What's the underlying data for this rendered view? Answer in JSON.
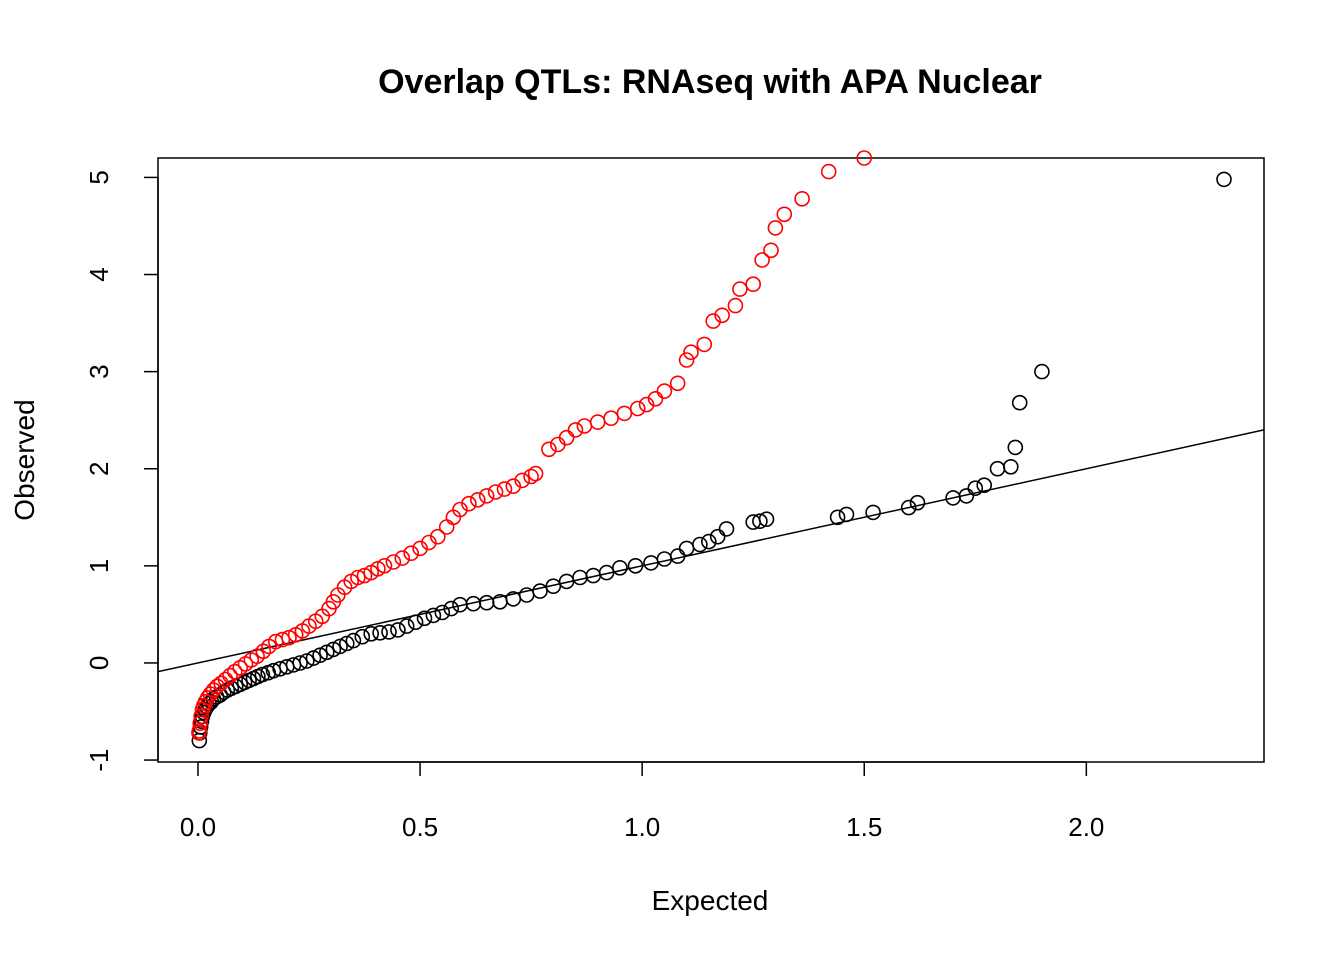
{
  "chart_data": {
    "type": "scatter",
    "title": "Overlap QTLs: RNAseq with APA Nuclear",
    "xlabel": "Expected",
    "ylabel": "Observed",
    "xlim": [
      -0.09,
      2.4
    ],
    "ylim": [
      -1.02,
      5.2
    ],
    "x_ticks": [
      0.0,
      0.5,
      1.0,
      1.5,
      2.0
    ],
    "x_tick_labels": [
      "0.0",
      "0.5",
      "1.0",
      "1.5",
      "2.0"
    ],
    "y_ticks": [
      -1,
      0,
      1,
      2,
      3,
      4,
      5
    ],
    "y_tick_labels": [
      "-1",
      "0",
      "1",
      "2",
      "3",
      "4",
      "5"
    ],
    "grid": false,
    "reference_line": {
      "intercept": 0.0,
      "slope": 1.0
    },
    "series": [
      {
        "color": "#000000",
        "marker": "open-circle",
        "points": [
          [
            0.003,
            -0.8
          ],
          [
            0.004,
            -0.72
          ],
          [
            0.006,
            -0.66
          ],
          [
            0.008,
            -0.6
          ],
          [
            0.01,
            -0.55
          ],
          [
            0.013,
            -0.51
          ],
          [
            0.016,
            -0.48
          ],
          [
            0.02,
            -0.45
          ],
          [
            0.025,
            -0.42
          ],
          [
            0.03,
            -0.4
          ],
          [
            0.035,
            -0.37
          ],
          [
            0.042,
            -0.35
          ],
          [
            0.05,
            -0.33
          ],
          [
            0.058,
            -0.3
          ],
          [
            0.066,
            -0.28
          ],
          [
            0.075,
            -0.26
          ],
          [
            0.085,
            -0.24
          ],
          [
            0.095,
            -0.22
          ],
          [
            0.105,
            -0.2
          ],
          [
            0.115,
            -0.18
          ],
          [
            0.125,
            -0.16
          ],
          [
            0.135,
            -0.14
          ],
          [
            0.145,
            -0.12
          ],
          [
            0.158,
            -0.1
          ],
          [
            0.17,
            -0.08
          ],
          [
            0.185,
            -0.06
          ],
          [
            0.2,
            -0.04
          ],
          [
            0.215,
            -0.02
          ],
          [
            0.23,
            0.0
          ],
          [
            0.245,
            0.02
          ],
          [
            0.26,
            0.05
          ],
          [
            0.275,
            0.08
          ],
          [
            0.29,
            0.11
          ],
          [
            0.305,
            0.14
          ],
          [
            0.32,
            0.17
          ],
          [
            0.335,
            0.2
          ],
          [
            0.35,
            0.23
          ],
          [
            0.37,
            0.27
          ],
          [
            0.39,
            0.3
          ],
          [
            0.41,
            0.31
          ],
          [
            0.43,
            0.32
          ],
          [
            0.45,
            0.34
          ],
          [
            0.47,
            0.38
          ],
          [
            0.49,
            0.42
          ],
          [
            0.51,
            0.46
          ],
          [
            0.53,
            0.49
          ],
          [
            0.55,
            0.52
          ],
          [
            0.57,
            0.56
          ],
          [
            0.59,
            0.6
          ],
          [
            0.62,
            0.61
          ],
          [
            0.65,
            0.62
          ],
          [
            0.68,
            0.63
          ],
          [
            0.71,
            0.66
          ],
          [
            0.74,
            0.7
          ],
          [
            0.77,
            0.74
          ],
          [
            0.8,
            0.79
          ],
          [
            0.83,
            0.84
          ],
          [
            0.86,
            0.88
          ],
          [
            0.89,
            0.9
          ],
          [
            0.92,
            0.93
          ],
          [
            0.95,
            0.98
          ],
          [
            0.985,
            1.0
          ],
          [
            1.02,
            1.03
          ],
          [
            1.05,
            1.07
          ],
          [
            1.08,
            1.1
          ],
          [
            1.1,
            1.18
          ],
          [
            1.13,
            1.22
          ],
          [
            1.15,
            1.25
          ],
          [
            1.17,
            1.3
          ],
          [
            1.19,
            1.38
          ],
          [
            1.25,
            1.45
          ],
          [
            1.265,
            1.46
          ],
          [
            1.28,
            1.48
          ],
          [
            1.44,
            1.5
          ],
          [
            1.46,
            1.53
          ],
          [
            1.52,
            1.55
          ],
          [
            1.6,
            1.6
          ],
          [
            1.62,
            1.65
          ],
          [
            1.7,
            1.7
          ],
          [
            1.73,
            1.72
          ],
          [
            1.75,
            1.8
          ],
          [
            1.77,
            1.83
          ],
          [
            1.8,
            2.0
          ],
          [
            1.83,
            2.02
          ],
          [
            1.84,
            2.22
          ],
          [
            1.85,
            2.68
          ],
          [
            1.9,
            3.0
          ],
          [
            2.31,
            4.98
          ]
        ]
      },
      {
        "color": "#ff0000",
        "marker": "open-circle",
        "points": [
          [
            0.002,
            -0.72
          ],
          [
            0.003,
            -0.7
          ],
          [
            0.005,
            -0.62
          ],
          [
            0.007,
            -0.55
          ],
          [
            0.01,
            -0.48
          ],
          [
            0.013,
            -0.44
          ],
          [
            0.017,
            -0.4
          ],
          [
            0.022,
            -0.36
          ],
          [
            0.028,
            -0.32
          ],
          [
            0.035,
            -0.28
          ],
          [
            0.043,
            -0.24
          ],
          [
            0.052,
            -0.21
          ],
          [
            0.062,
            -0.17
          ],
          [
            0.072,
            -0.13
          ],
          [
            0.083,
            -0.09
          ],
          [
            0.095,
            -0.05
          ],
          [
            0.107,
            -0.01
          ],
          [
            0.12,
            0.03
          ],
          [
            0.133,
            0.07
          ],
          [
            0.147,
            0.12
          ],
          [
            0.16,
            0.17
          ],
          [
            0.175,
            0.22
          ],
          [
            0.19,
            0.24
          ],
          [
            0.205,
            0.26
          ],
          [
            0.22,
            0.29
          ],
          [
            0.235,
            0.33
          ],
          [
            0.25,
            0.38
          ],
          [
            0.265,
            0.43
          ],
          [
            0.28,
            0.48
          ],
          [
            0.295,
            0.56
          ],
          [
            0.305,
            0.63
          ],
          [
            0.315,
            0.7
          ],
          [
            0.33,
            0.78
          ],
          [
            0.345,
            0.84
          ],
          [
            0.36,
            0.88
          ],
          [
            0.375,
            0.9
          ],
          [
            0.39,
            0.93
          ],
          [
            0.405,
            0.97
          ],
          [
            0.42,
            1.0
          ],
          [
            0.44,
            1.04
          ],
          [
            0.46,
            1.08
          ],
          [
            0.48,
            1.13
          ],
          [
            0.5,
            1.18
          ],
          [
            0.52,
            1.24
          ],
          [
            0.54,
            1.3
          ],
          [
            0.56,
            1.4
          ],
          [
            0.575,
            1.5
          ],
          [
            0.59,
            1.58
          ],
          [
            0.61,
            1.64
          ],
          [
            0.63,
            1.68
          ],
          [
            0.65,
            1.72
          ],
          [
            0.67,
            1.76
          ],
          [
            0.69,
            1.79
          ],
          [
            0.71,
            1.82
          ],
          [
            0.73,
            1.88
          ],
          [
            0.75,
            1.92
          ],
          [
            0.76,
            1.95
          ],
          [
            0.79,
            2.2
          ],
          [
            0.81,
            2.25
          ],
          [
            0.83,
            2.32
          ],
          [
            0.85,
            2.4
          ],
          [
            0.87,
            2.44
          ],
          [
            0.9,
            2.48
          ],
          [
            0.93,
            2.52
          ],
          [
            0.96,
            2.57
          ],
          [
            0.99,
            2.62
          ],
          [
            1.01,
            2.66
          ],
          [
            1.03,
            2.72
          ],
          [
            1.05,
            2.8
          ],
          [
            1.08,
            2.88
          ],
          [
            1.1,
            3.12
          ],
          [
            1.11,
            3.2
          ],
          [
            1.14,
            3.28
          ],
          [
            1.16,
            3.52
          ],
          [
            1.18,
            3.58
          ],
          [
            1.21,
            3.68
          ],
          [
            1.22,
            3.85
          ],
          [
            1.25,
            3.9
          ],
          [
            1.27,
            4.15
          ],
          [
            1.29,
            4.25
          ],
          [
            1.3,
            4.48
          ],
          [
            1.32,
            4.62
          ],
          [
            1.36,
            4.78
          ],
          [
            1.42,
            5.06
          ],
          [
            1.5,
            5.2
          ]
        ]
      }
    ]
  }
}
